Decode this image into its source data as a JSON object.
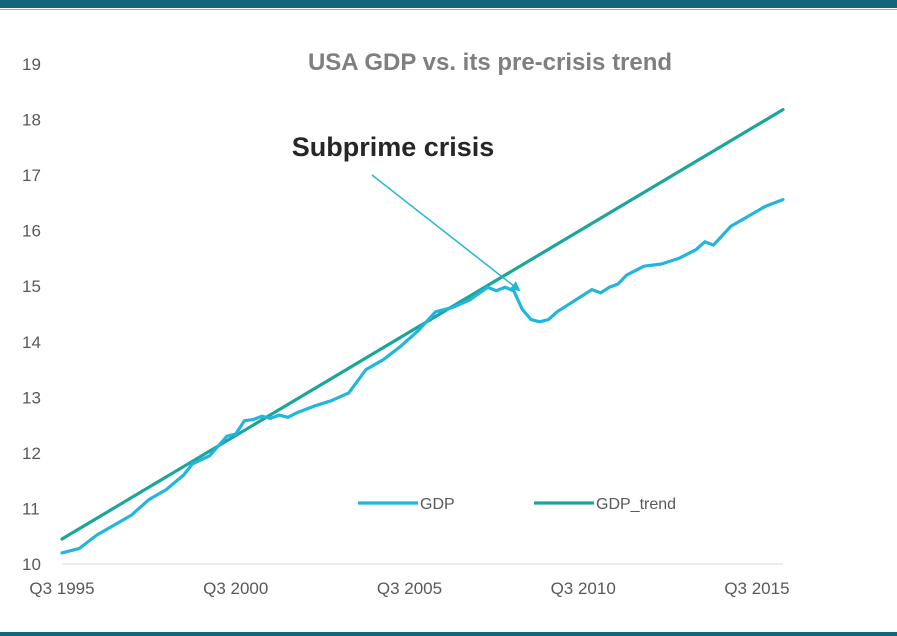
{
  "chart_data": {
    "type": "line",
    "title": "USA GDP vs. its pre-crisis trend",
    "xlabel": "",
    "ylabel": "",
    "x_tick_labels": [
      "Q3 1995",
      "Q3 2000",
      "Q3 2005",
      "Q3 2010",
      "Q3 2015"
    ],
    "y_ticks": [
      10,
      11,
      12,
      13,
      14,
      15,
      16,
      17,
      18,
      19
    ],
    "ylim": [
      10,
      19
    ],
    "xlim": [
      "1995 Q3",
      "2016 Q2"
    ],
    "grid": false,
    "legend_position": "bottom-right inside",
    "annotation": {
      "text": "Subprime crisis",
      "points_to": "2008 Q1"
    },
    "series": [
      {
        "name": "GDP",
        "color": "#22b5dd",
        "points": [
          [
            "1995 Q3",
            10.2
          ],
          [
            "1996 Q1",
            10.28
          ],
          [
            "1996 Q3",
            10.52
          ],
          [
            "1997 Q1",
            10.7
          ],
          [
            "1997 Q3",
            10.88
          ],
          [
            "1998 Q1",
            11.16
          ],
          [
            "1998 Q3",
            11.34
          ],
          [
            "1999 Q1",
            11.6
          ],
          [
            "1999 Q2",
            11.8
          ],
          [
            "1999 Q4",
            11.95
          ],
          [
            "2000 Q2",
            12.3
          ],
          [
            "2000 Q3",
            12.34
          ],
          [
            "2000 Q4",
            12.58
          ],
          [
            "2001 Q1",
            12.6
          ],
          [
            "2001 Q2",
            12.66
          ],
          [
            "2001 Q3",
            12.62
          ],
          [
            "2001 Q4",
            12.68
          ],
          [
            "2002 Q1",
            12.64
          ],
          [
            "2002 Q2",
            12.72
          ],
          [
            "2002 Q4",
            12.84
          ],
          [
            "2003 Q2",
            12.94
          ],
          [
            "2003 Q4",
            13.08
          ],
          [
            "2004 Q2",
            13.5
          ],
          [
            "2004 Q4",
            13.68
          ],
          [
            "2005 Q2",
            13.92
          ],
          [
            "2005 Q4",
            14.2
          ],
          [
            "2006 Q2",
            14.54
          ],
          [
            "2006 Q4",
            14.62
          ],
          [
            "2007 Q2",
            14.76
          ],
          [
            "2007 Q4",
            14.98
          ],
          [
            "2008 Q1",
            14.92
          ],
          [
            "2008 Q2",
            14.98
          ],
          [
            "2008 Q3",
            14.92
          ],
          [
            "2008 Q4",
            14.58
          ],
          [
            "2009 Q1",
            14.4
          ],
          [
            "2009 Q2",
            14.36
          ],
          [
            "2009 Q3",
            14.4
          ],
          [
            "2009 Q4",
            14.54
          ],
          [
            "2010 Q2",
            14.74
          ],
          [
            "2010 Q4",
            14.94
          ],
          [
            "2011 Q1",
            14.88
          ],
          [
            "2011 Q2",
            14.98
          ],
          [
            "2011 Q3",
            15.04
          ],
          [
            "2011 Q4",
            15.2
          ],
          [
            "2012 Q2",
            15.36
          ],
          [
            "2012 Q4",
            15.4
          ],
          [
            "2013 Q2",
            15.5
          ],
          [
            "2013 Q4",
            15.66
          ],
          [
            "2014 Q1",
            15.8
          ],
          [
            "2014 Q2",
            15.74
          ],
          [
            "2014 Q4",
            16.08
          ],
          [
            "2015 Q2",
            16.26
          ],
          [
            "2015 Q4",
            16.44
          ],
          [
            "2016 Q2",
            16.56
          ]
        ]
      },
      {
        "name": "GDP_trend",
        "color": "#1ba69a",
        "points": [
          [
            "1995 Q3",
            10.45
          ],
          [
            "2016 Q2",
            18.18
          ]
        ]
      }
    ]
  }
}
